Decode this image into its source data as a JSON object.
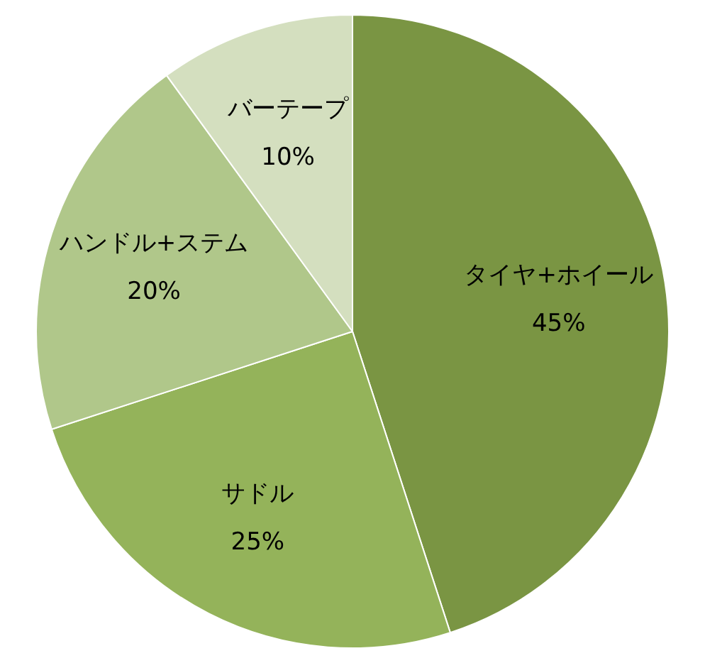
{
  "chart_data": {
    "type": "pie",
    "categories": [
      "タイヤ+ホイール",
      "サドル",
      "ハンドル+ステム",
      "バーテープ"
    ],
    "values": [
      45,
      25,
      20,
      10
    ],
    "colors": [
      "#7a9543",
      "#94b35a",
      "#b0c78a",
      "#d4dfbf"
    ],
    "value_labels": [
      "45%",
      "25%",
      "20%",
      "10%"
    ],
    "legend": false
  }
}
